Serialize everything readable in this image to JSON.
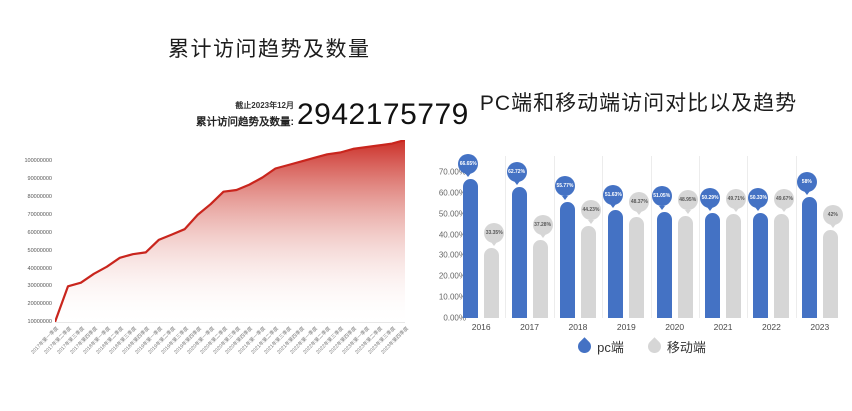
{
  "left_chart": {
    "title": "累计访问趋势及数量",
    "annotation": {
      "date_note": "截止2023年12月",
      "label": "累计访问趋势及数量:",
      "value": "2942175779"
    },
    "colors": {
      "line": "#c9251d",
      "fill_top": "#c9251d",
      "fill_mid": "#dd7a72",
      "fill_bottom": "#ffffff"
    }
  },
  "right_chart": {
    "title": "PC端和移动端访问对比以及趋势",
    "colors": {
      "pc": "#4472c4",
      "mobile": "#d6d6d6",
      "pc_text": "#ffffff",
      "mobile_text": "#595959"
    },
    "legend": [
      {
        "label": "pc端",
        "color": "#4472c4"
      },
      {
        "label": "移动端",
        "color": "#d6d6d6"
      }
    ]
  },
  "chart_data": [
    {
      "type": "area",
      "title": "累计访问趋势及数量",
      "xlabel": "",
      "ylabel": "",
      "axis_min": 10000000,
      "axis_max": 112000000,
      "grid": false,
      "y_ticks": [
        "100000000",
        "90000000",
        "80000000",
        "70000000",
        "60000000",
        "50000000",
        "40000000",
        "30000000",
        "20000000",
        "10000000"
      ],
      "x": [
        "2017年第一季度",
        "2017年第二季度",
        "2017年第三季度",
        "2017年第四季度",
        "2018年第一季度",
        "2018年第二季度",
        "2018年第三季度",
        "2018年第四季度",
        "2019年第一季度",
        "2019年第二季度",
        "2019年第三季度",
        "2019年第四季度",
        "2020年第一季度",
        "2020年第二季度",
        "2020年第三季度",
        "2020年第四季度",
        "2021年第一季度",
        "2021年第二季度",
        "2021年第三季度",
        "2021年第四季度",
        "2022年第一季度",
        "2022年第二季度",
        "2022年第三季度",
        "2022年第四季度",
        "2023年第一季度",
        "2023年第二季度",
        "2023年第三季度",
        "2023年第四季度"
      ],
      "values": [
        10000000,
        30000000,
        32000000,
        37000000,
        41000000,
        46000000,
        48000000,
        49000000,
        56000000,
        59000000,
        62000000,
        70000000,
        76000000,
        83000000,
        84000000,
        87000000,
        91000000,
        96000000,
        98000000,
        100000000,
        102000000,
        104000000,
        105000000,
        107000000,
        108000000,
        109000000,
        110000000,
        112000000
      ]
    },
    {
      "type": "bar",
      "title": "PC端和移动端访问对比以及趋势",
      "categories": [
        "2016",
        "2017",
        "2018",
        "2019",
        "2020",
        "2021",
        "2022",
        "2023"
      ],
      "ylim": [
        0,
        70
      ],
      "grid": false,
      "legend_position": "bottom",
      "y_ticks": [
        "70.00%",
        "60.00%",
        "50.00%",
        "40.00%",
        "30.00%",
        "20.00%",
        "10.00%",
        "0.00%"
      ],
      "series": [
        {
          "name": "pc端",
          "color": "#4472c4",
          "values": [
            66.65,
            62.72,
            55.77,
            51.63,
            51.05,
            50.29,
            50.33,
            58
          ],
          "labels": [
            "66.65%",
            "62.72%",
            "55.77%",
            "51.63%",
            "51.05%",
            "50.29%",
            "50.33%",
            "58%"
          ]
        },
        {
          "name": "移动端",
          "color": "#d6d6d6",
          "values": [
            33.35,
            37.28,
            44.23,
            48.37,
            48.95,
            49.71,
            49.67,
            42
          ],
          "labels": [
            "33.35%",
            "37.28%",
            "44.23%",
            "48.37%",
            "48.95%",
            "49.71%",
            "49.67%",
            "42%"
          ]
        }
      ]
    }
  ]
}
